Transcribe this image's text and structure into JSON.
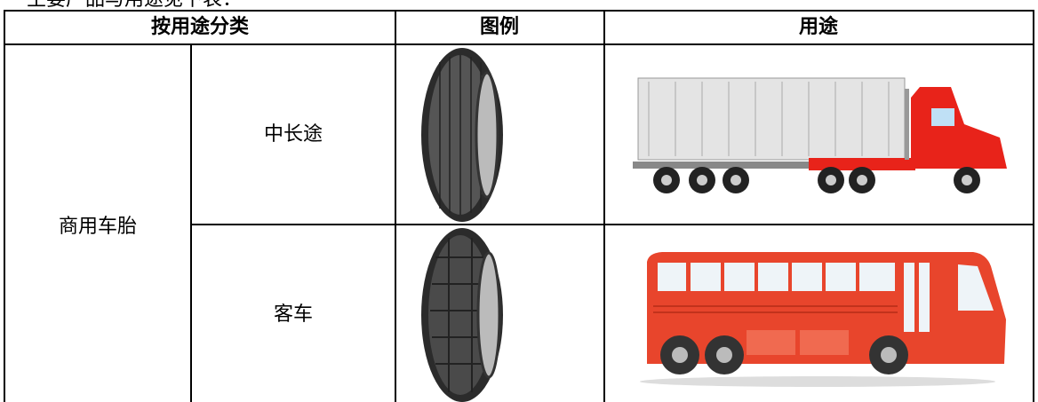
{
  "caption": "主要产品与用途见下表：",
  "table": {
    "headers": [
      "按用途分类",
      "图例",
      "用途"
    ],
    "group": "商用车胎",
    "rows": [
      {
        "label": "中长途"
      },
      {
        "label": "客车"
      }
    ]
  }
}
